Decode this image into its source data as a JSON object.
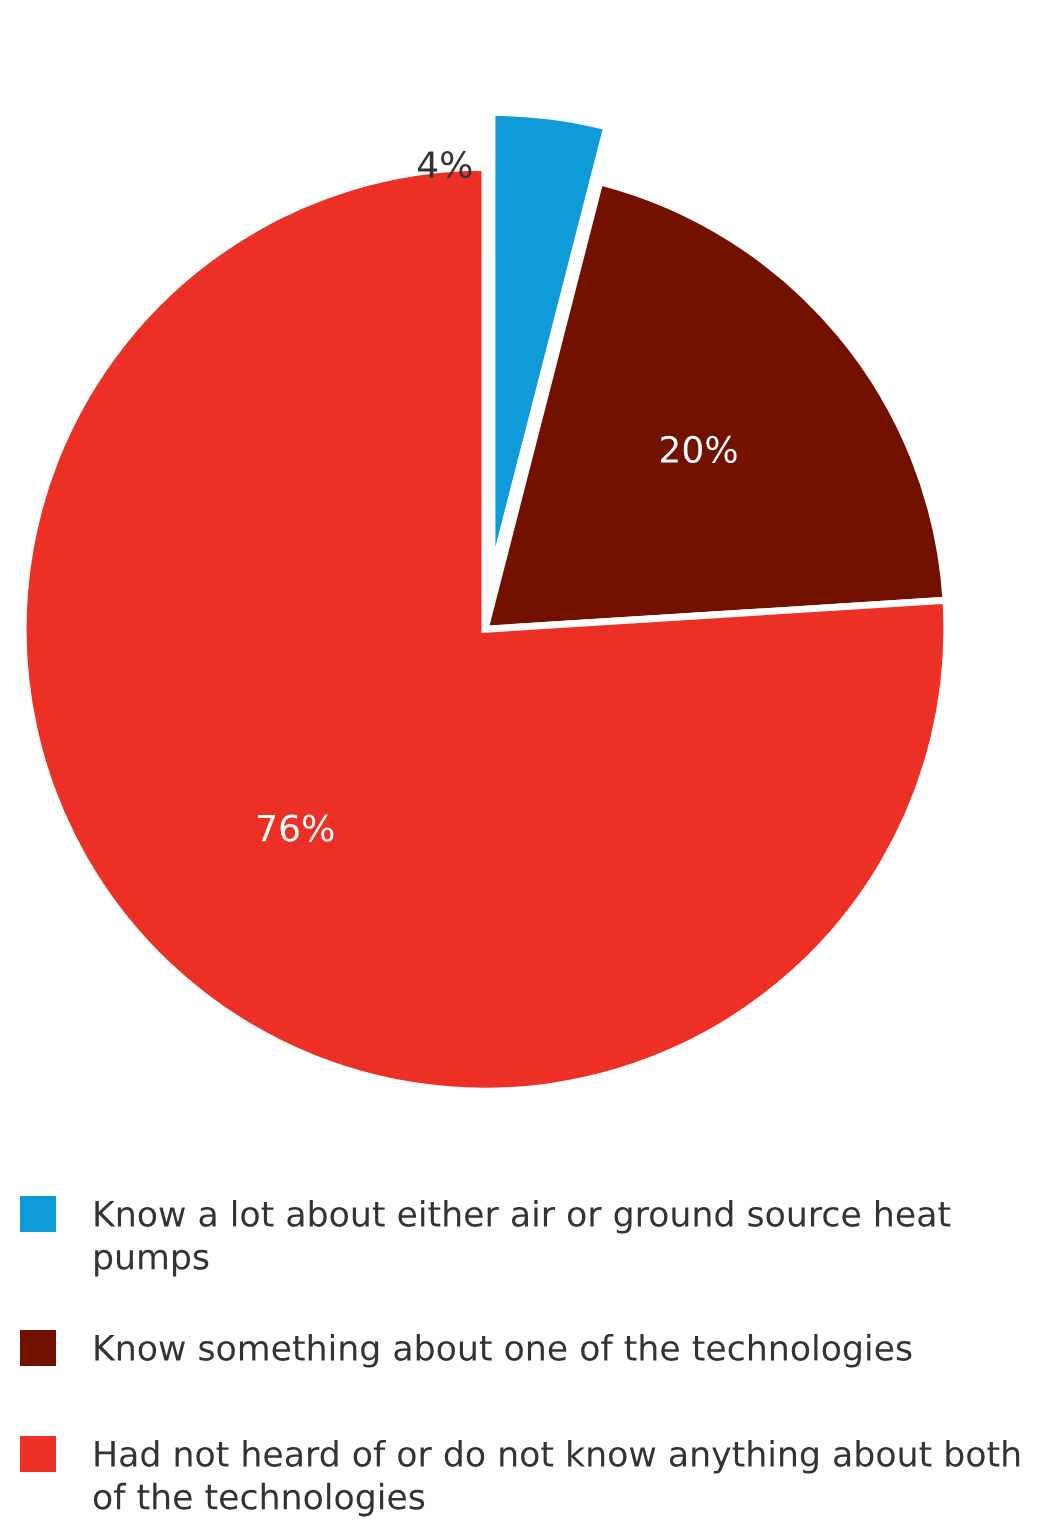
{
  "chart_data": {
    "type": "pie",
    "categories": [
      "Know a lot about either air or ground source heat pumps",
      "Know something about one of the technologies",
      "Had not heard of or do not know anything about both of the technologies"
    ],
    "values": [
      4,
      20,
      76
    ],
    "colors": [
      "#0f9bd7",
      "#731100",
      "#ec3026"
    ],
    "value_labels": [
      "4%",
      "20%",
      "76%"
    ],
    "legend": "bottom"
  }
}
